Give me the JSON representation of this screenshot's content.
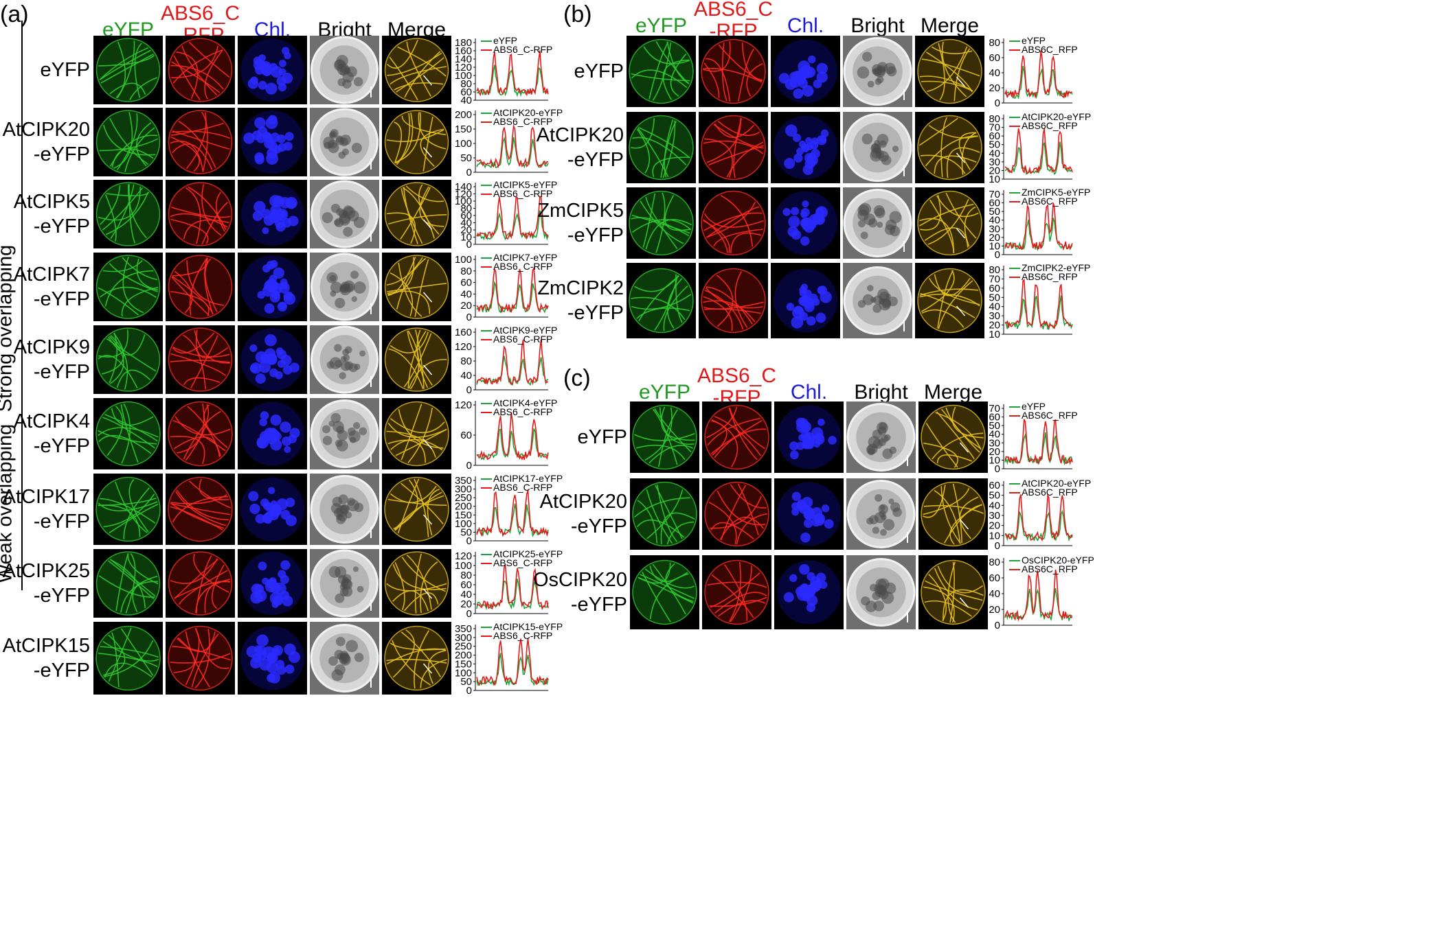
{
  "panels": [
    {
      "letter": "(a)",
      "columns": [
        {
          "label": "eYFP",
          "color": "#1f9a1f"
        },
        {
          "label": "ABS6_C\n-RFP",
          "color": "#e01818"
        },
        {
          "label": "Chl.",
          "color": "#1a1ad8"
        },
        {
          "label": "Bright",
          "color": "#000000"
        },
        {
          "label": "Merge",
          "color": "#000000"
        }
      ],
      "groups": [
        {
          "label": "Strong overlapping"
        },
        {
          "label": "Weak overlapping"
        }
      ],
      "rows": [
        {
          "label": "eYFP",
          "legend": [
            "eYFP",
            "ABS6_C-RFP"
          ],
          "yticks": [
            "40",
            "60",
            "80",
            "100",
            "120",
            "140",
            "160",
            "180"
          ]
        },
        {
          "label": "AtCIPK20\n-eYFP",
          "legend": [
            "AtCIPK20-eYFP",
            "ABS6_C-RFP"
          ],
          "yticks": [
            "0",
            "50",
            "100",
            "150",
            "200"
          ]
        },
        {
          "label": "AtCIPK5\n-eYFP",
          "legend": [
            "AtCIPK5-eYFP",
            "ABS6_C-RFP"
          ],
          "yticks": [
            "0",
            "10",
            "20",
            "40",
            "60",
            "80",
            "100",
            "120",
            "140"
          ]
        },
        {
          "label": "AtCIPK7\n-eYFP",
          "legend": [
            "AtCIPK7-eYFP",
            "ABS6_C-RFP"
          ],
          "yticks": [
            "0",
            "20",
            "40",
            "60",
            "80",
            "100"
          ]
        },
        {
          "label": "AtCIPK9\n-eYFP",
          "legend": [
            "AtCIPK9-eYFP",
            "ABS6_C-RFP"
          ],
          "yticks": [
            "0",
            "40",
            "80",
            "120",
            "160"
          ]
        },
        {
          "label": "AtCIPK4\n-eYFP",
          "legend": [
            "AtCIPK4-eYFP",
            "ABS6_C-RFP"
          ],
          "yticks": [
            "0",
            "60",
            "120"
          ]
        },
        {
          "label": "AtCIPK17\n-eYFP",
          "legend": [
            "AtCIPK17-eYFP",
            "ABS6_C-RFP"
          ],
          "yticks": [
            "0",
            "50",
            "100",
            "150",
            "200",
            "250",
            "300",
            "350"
          ]
        },
        {
          "label": "AtCIPK25\n-eYFP",
          "legend": [
            "AtCIPK25-eYFP",
            "ABS6_C-RFP"
          ],
          "yticks": [
            "0",
            "20",
            "40",
            "60",
            "80",
            "100",
            "120"
          ]
        },
        {
          "label": "AtCIPK15\n-eYFP",
          "legend": [
            "AtCIPK15-eYFP",
            "ABS6_C-RFP"
          ],
          "yticks": [
            "0",
            "50",
            "100",
            "150",
            "200",
            "250",
            "300",
            "350"
          ]
        }
      ]
    },
    {
      "letter": "(b)",
      "columns": [
        {
          "label": "eYFP",
          "color": "#1f9a1f"
        },
        {
          "label": "ABS6_C\n-RFP",
          "color": "#e01818"
        },
        {
          "label": "Chl.",
          "color": "#1a1ad8"
        },
        {
          "label": "Bright",
          "color": "#000000"
        },
        {
          "label": "Merge",
          "color": "#000000"
        }
      ],
      "rows": [
        {
          "label": "eYFP",
          "legend": [
            "eYFP",
            "ABS6C_RFP"
          ],
          "yticks": [
            "0",
            "20",
            "40",
            "60",
            "80"
          ]
        },
        {
          "label": "AtCIPK20\n-eYFP",
          "legend": [
            "AtCIPK20-eYFP",
            "ABS6C_RFP"
          ],
          "yticks": [
            "10",
            "20",
            "30",
            "40",
            "50",
            "60",
            "70",
            "80"
          ]
        },
        {
          "label": "ZmCIPK5\n-eYFP",
          "legend": [
            "ZmCIPK5-eYFP",
            "ABS6C_RFP"
          ],
          "yticks": [
            "0",
            "10",
            "20",
            "30",
            "40",
            "50",
            "60",
            "70"
          ]
        },
        {
          "label": "ZmCIPK2\n-eYFP",
          "legend": [
            "ZmCIPK2-eYFP",
            "ABS6C_RFP"
          ],
          "yticks": [
            "10",
            "20",
            "30",
            "40",
            "50",
            "60",
            "70",
            "80"
          ]
        }
      ]
    },
    {
      "letter": "(c)",
      "columns": [
        {
          "label": "eYFP",
          "color": "#1f9a1f"
        },
        {
          "label": "ABS6_C\n-RFP",
          "color": "#e01818"
        },
        {
          "label": "Chl.",
          "color": "#1a1ad8"
        },
        {
          "label": "Bright",
          "color": "#000000"
        },
        {
          "label": "Merge",
          "color": "#000000"
        }
      ],
      "rows": [
        {
          "label": "eYFP",
          "legend": [
            "eYFP",
            "ABS6C_RFP"
          ],
          "yticks": [
            "0",
            "10",
            "20",
            "30",
            "40",
            "50",
            "60",
            "70"
          ]
        },
        {
          "label": "AtCIPK20\n-eYFP",
          "legend": [
            "AtCIPK20-eYFP",
            "ABS6C_RFP"
          ],
          "yticks": [
            "0",
            "10",
            "20",
            "30",
            "40",
            "50",
            "60"
          ]
        },
        {
          "label": "OsCIPK20\n-eYFP",
          "legend": [
            "OsCIPK20-eYFP",
            "ABS6C_RFP"
          ],
          "yticks": [
            "0",
            "20",
            "40",
            "60",
            "80"
          ]
        }
      ]
    }
  ],
  "series_colors": {
    "green": "#1ea33a",
    "red": "#e41a1a"
  }
}
